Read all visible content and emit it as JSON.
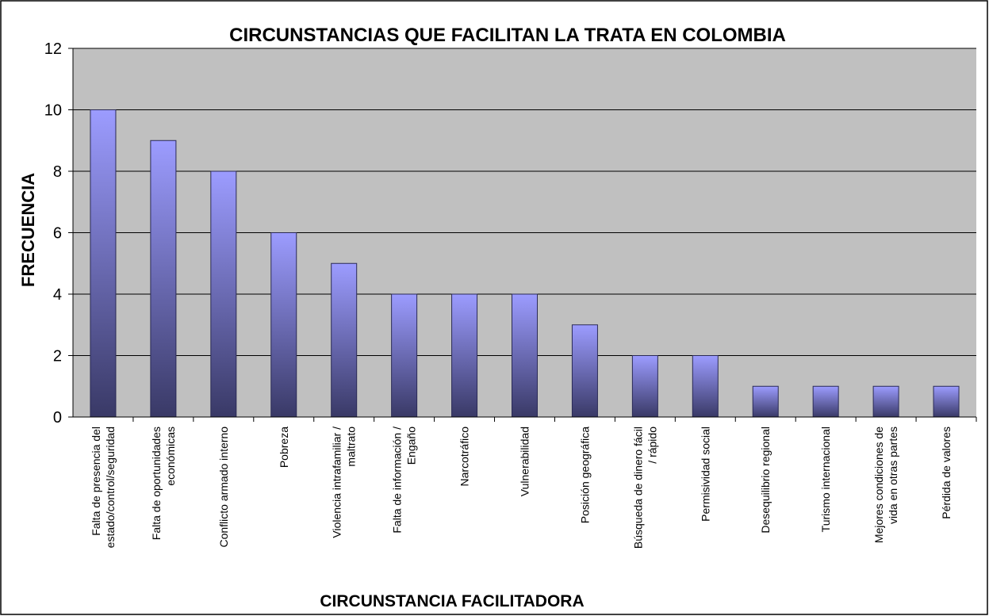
{
  "chart_data": {
    "type": "bar",
    "title": "CIRCUNSTANCIAS QUE FACILITAN LA TRATA EN COLOMBIA",
    "x_label": "CIRCUNSTANCIA FACILITADORA",
    "y_label": "FRECUENCIA",
    "categories": [
      "Falta de presencia del\nestado/control/seguridad",
      "Falta de oportunidades\neconómicas",
      "Conflicto armado interno",
      "Pobreza",
      "Violencia intrafamiliar /\nmaltrato",
      "Falta de información /\nEngaño",
      "Narcotráfico",
      "Vulnerabilidad",
      "Posición geográfica",
      "Búsqueda de dinero fácil\n/ rápido",
      "Permisividad social",
      "Desequilibrio regional",
      "Turismo internacional",
      "Mejores condiciones de\nvida en otras partes",
      "Pérdida de valores"
    ],
    "values": [
      10,
      9,
      8,
      6,
      5,
      4,
      4,
      4,
      3,
      2,
      2,
      1,
      1,
      1,
      1
    ],
    "color": "#9999ff",
    "ylim": [
      0,
      12
    ],
    "yticks": [
      0,
      2,
      4,
      6,
      8,
      10,
      12
    ],
    "grid": true
  }
}
